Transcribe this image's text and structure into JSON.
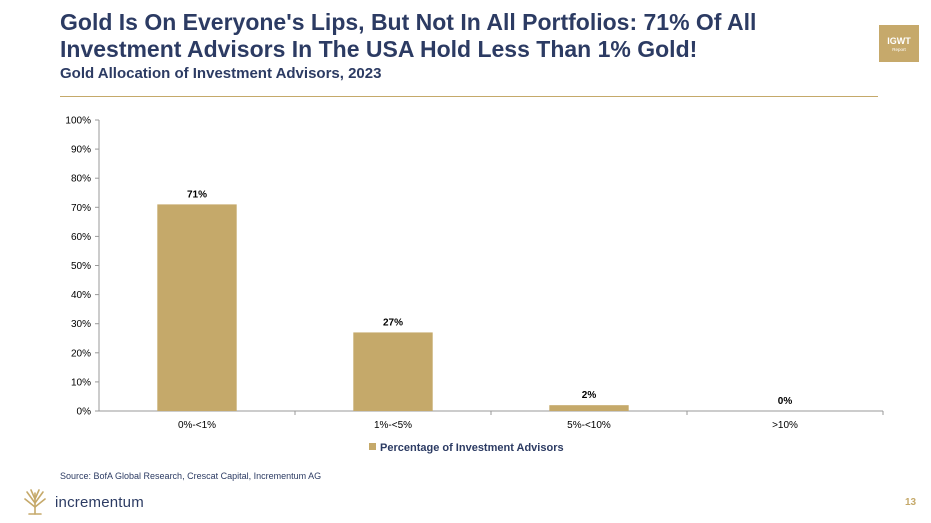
{
  "header": {
    "title": "Gold Is On Everyone's Lips, But Not In All Portfolios: 71% Of All Investment Advisors In The USA Hold Less Than 1% Gold!",
    "subtitle": "Gold Allocation of Investment Advisors, 2023"
  },
  "badge": {
    "line1": "IGWT",
    "line2": "Report"
  },
  "chart_data": {
    "type": "bar",
    "categories": [
      "0%-<1%",
      "1%-<5%",
      "5%-<10%",
      ">10%"
    ],
    "series": [
      {
        "name": "Percentage of Investment Advisors",
        "values": [
          71,
          27,
          2,
          0
        ]
      }
    ],
    "data_labels": [
      "71%",
      "27%",
      "2%",
      "0%"
    ],
    "yticks": [
      "0%",
      "10%",
      "20%",
      "30%",
      "40%",
      "50%",
      "60%",
      "70%",
      "80%",
      "90%",
      "100%"
    ],
    "ylim": [
      0,
      100
    ],
    "grid": false,
    "legend_position": "bottom",
    "bar_color": "#c5a96a"
  },
  "footer": {
    "source": "Source: BofA Global Research, Crescat Capital, Incrementum AG",
    "brand": "incrementum",
    "page": "13"
  },
  "colors": {
    "navy": "#2c3b63",
    "gold": "#c5a96a"
  }
}
